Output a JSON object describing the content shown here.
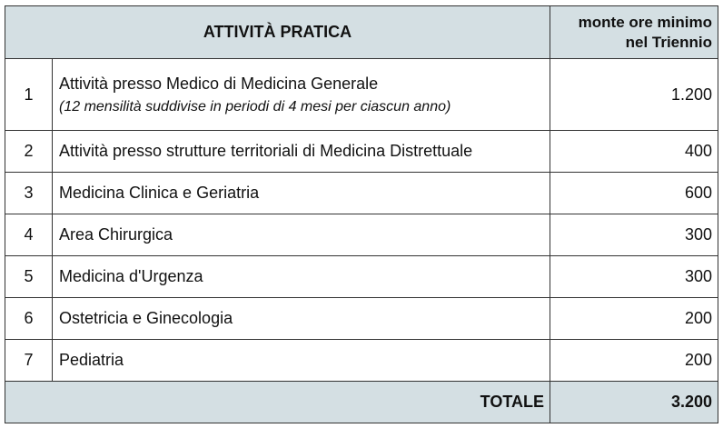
{
  "header": {
    "activity_title": "ATTIVITÀ PRATICA",
    "hours_title_line1": "monte ore minimo",
    "hours_title_line2": "nel Triennio"
  },
  "rows": [
    {
      "num": "1",
      "activity": "Attività presso Medico di Medicina Generale",
      "note": "(12 mensilità suddivise in periodi di 4 mesi per ciascun anno)",
      "hours": "1.200"
    },
    {
      "num": "2",
      "activity": "Attività presso strutture territoriali di Medicina Distrettuale",
      "hours": "400"
    },
    {
      "num": "3",
      "activity": "Medicina Clinica e Geriatria",
      "hours": "600"
    },
    {
      "num": "4",
      "activity": "Area Chirurgica",
      "hours": "300"
    },
    {
      "num": "5",
      "activity": "Medicina d'Urgenza",
      "hours": "300"
    },
    {
      "num": "6",
      "activity": "Ostetricia e Ginecologia",
      "hours": "200"
    },
    {
      "num": "7",
      "activity": "Pediatria",
      "hours": "200"
    }
  ],
  "total": {
    "label": "TOTALE",
    "value": "3.200"
  }
}
